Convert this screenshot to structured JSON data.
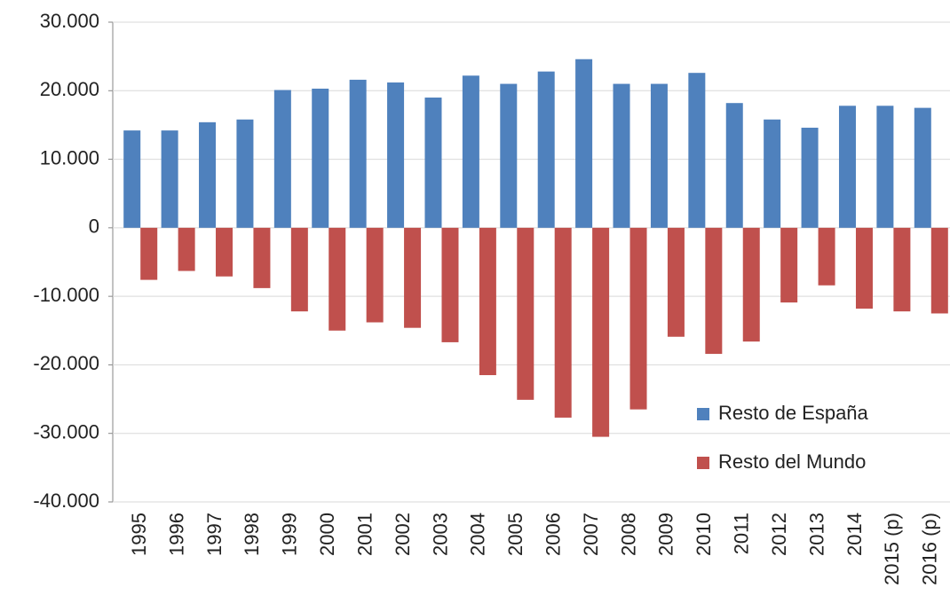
{
  "chart_data": {
    "type": "bar",
    "categories": [
      "1995",
      "1996",
      "1997",
      "1998",
      "1999",
      "2000",
      "2001",
      "2002",
      "2003",
      "2004",
      "2005",
      "2006",
      "2007",
      "2008",
      "2009",
      "2010",
      "2011",
      "2012",
      "2013",
      "2014",
      "2015 (p)",
      "2016 (p)"
    ],
    "series": [
      {
        "name": "Resto de España",
        "color": "#4f81bd",
        "values": [
          14200,
          14200,
          15400,
          15800,
          20100,
          20300,
          21600,
          21200,
          19000,
          22200,
          21000,
          22800,
          24600,
          21000,
          21000,
          22600,
          18200,
          15800,
          14600,
          17800,
          17800,
          17500
        ]
      },
      {
        "name": "Resto del Mundo",
        "color": "#c0504d",
        "values": [
          -7600,
          -6300,
          -7100,
          -8800,
          -12200,
          -15000,
          -13800,
          -14600,
          -16700,
          -21500,
          -25100,
          -27700,
          -30500,
          -26500,
          -15900,
          -18400,
          -16600,
          -10900,
          -8400,
          -11800,
          -12200,
          -12500
        ]
      }
    ],
    "ylim": [
      -40000,
      30000
    ],
    "yticks": [
      {
        "value": -40000,
        "label": "-40.000"
      },
      {
        "value": -30000,
        "label": "-30.000"
      },
      {
        "value": -20000,
        "label": "-20.000"
      },
      {
        "value": -10000,
        "label": "-10.000"
      },
      0,
      {
        "value": 10000,
        "label": "10.000"
      },
      {
        "value": 20000,
        "label": "20.000"
      },
      {
        "value": 30000,
        "label": "30.000"
      }
    ],
    "grid": true,
    "legend": "lower right"
  }
}
